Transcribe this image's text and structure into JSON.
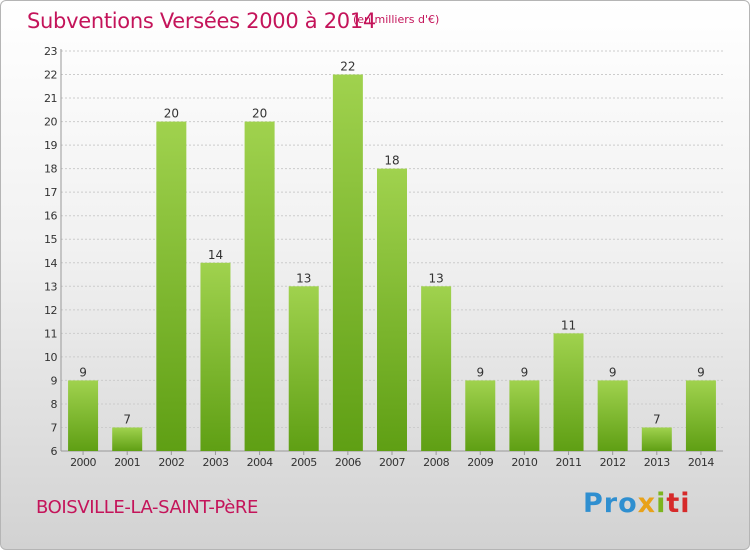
{
  "title": "Subventions Versées 2000 à 2014",
  "subtitle": "(en milliers d'€)",
  "commune": "BOISVILLE-LA-SAINT-PèRE",
  "logo": {
    "parts": [
      "Pro",
      "x",
      "i",
      "ti"
    ]
  },
  "colors": {
    "title": "#c4145a",
    "bar_light": "#a0d24e",
    "bar_dark": "#5f9f14",
    "grid": "#cccccc"
  },
  "chart_data": {
    "type": "bar",
    "title": "Subventions Versées 2000 à 2014",
    "subtitle": "(en milliers d'€)",
    "categories": [
      "2000",
      "2001",
      "2002",
      "2003",
      "2004",
      "2005",
      "2006",
      "2007",
      "2008",
      "2009",
      "2010",
      "2011",
      "2012",
      "2013",
      "2014"
    ],
    "values": [
      9,
      7,
      20,
      14,
      20,
      13,
      22,
      18,
      13,
      9,
      9,
      11,
      9,
      7,
      9
    ],
    "data_labels": [
      "9",
      "7",
      "20",
      "14",
      "20",
      "13",
      "22",
      "18",
      "13",
      "9",
      "9",
      "11",
      "9",
      "7",
      "9"
    ],
    "ylim": [
      6,
      23
    ],
    "yticks": [
      6,
      7,
      8,
      9,
      10,
      11,
      12,
      13,
      14,
      15,
      16,
      17,
      18,
      19,
      20,
      21,
      22,
      23
    ],
    "grid": true,
    "legend": "none"
  }
}
